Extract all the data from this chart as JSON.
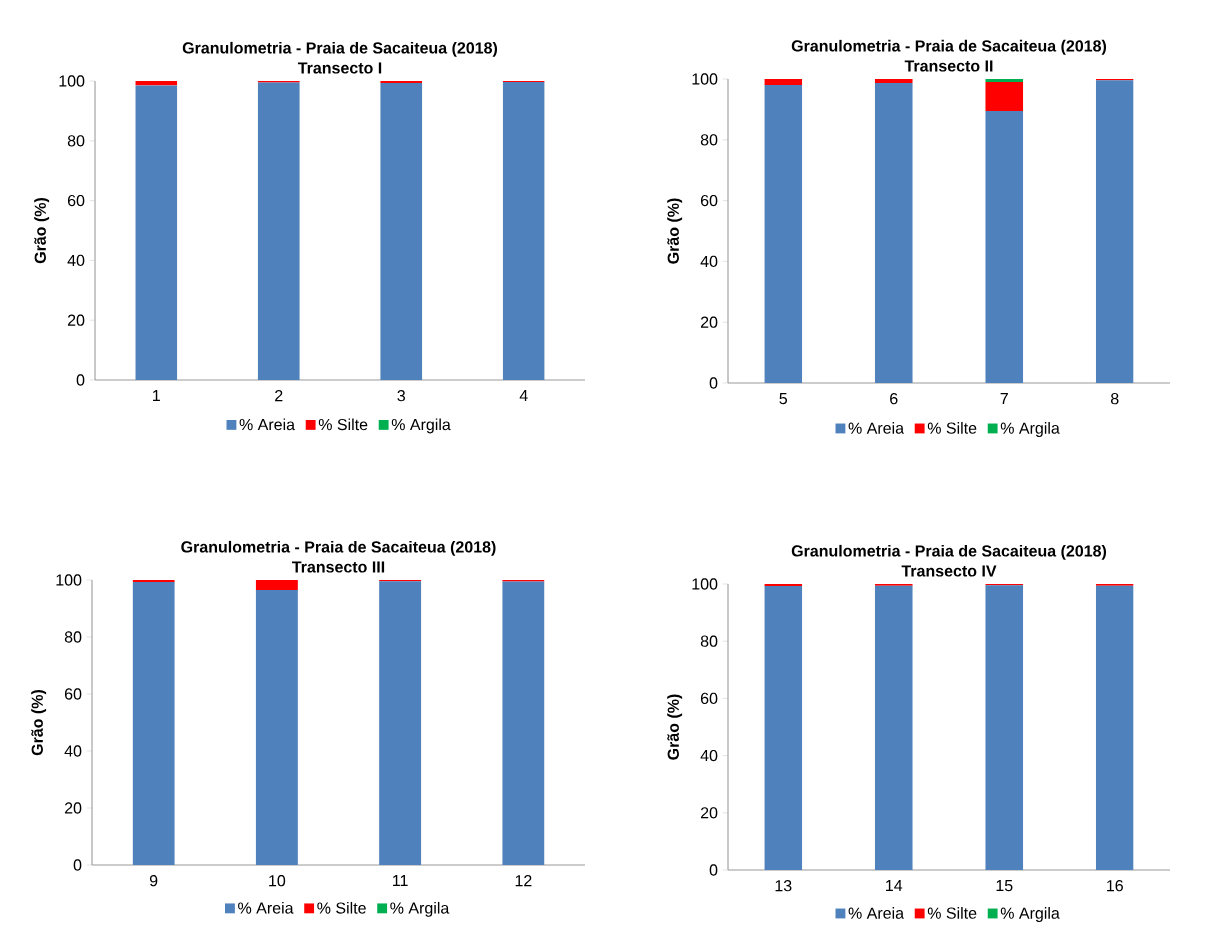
{
  "chart_data": [
    {
      "type": "bar",
      "stacked": true,
      "title": "Granulometria - Praia de Sacaiteua (2018)",
      "subtitle": "Transecto I",
      "ylabel": "Grão (%)",
      "categories": [
        "1",
        "2",
        "3",
        "4"
      ],
      "ylim": [
        0,
        100
      ],
      "yticks": [
        0,
        20,
        40,
        60,
        80,
        100
      ],
      "grid": false,
      "legend": "bottom",
      "series": [
        {
          "name": "% Areia",
          "color": "#4f81bd",
          "values": [
            98.5,
            99.5,
            99.3,
            99.7
          ]
        },
        {
          "name": "% Silte",
          "color": "#ff0000",
          "values": [
            1.5,
            0.5,
            0.7,
            0.3
          ]
        },
        {
          "name": "% Argila",
          "color": "#00b050",
          "values": [
            0,
            0,
            0,
            0
          ]
        }
      ]
    },
    {
      "type": "bar",
      "stacked": true,
      "title": "Granulometria - Praia de Sacaiteua (2018)",
      "subtitle": "Transecto II",
      "ylabel": "Grão (%)",
      "categories": [
        "5",
        "6",
        "7",
        "8"
      ],
      "ylim": [
        0,
        100
      ],
      "yticks": [
        0,
        20,
        40,
        60,
        80,
        100
      ],
      "grid": false,
      "legend": "bottom",
      "series": [
        {
          "name": "% Areia",
          "color": "#4f81bd",
          "values": [
            98,
            98.7,
            89.5,
            99.6
          ]
        },
        {
          "name": "% Silte",
          "color": "#ff0000",
          "values": [
            2,
            1.3,
            9.5,
            0.4
          ]
        },
        {
          "name": "% Argila",
          "color": "#00b050",
          "values": [
            0,
            0,
            1,
            0
          ]
        }
      ]
    },
    {
      "type": "bar",
      "stacked": true,
      "title": "Granulometria - Praia de Sacaiteua (2018)",
      "subtitle": "Transecto III",
      "ylabel": "Grão (%)",
      "categories": [
        "9",
        "10",
        "11",
        "12"
      ],
      "ylim": [
        0,
        100
      ],
      "yticks": [
        0,
        20,
        40,
        60,
        80,
        100
      ],
      "grid": false,
      "legend": "bottom",
      "series": [
        {
          "name": "% Areia",
          "color": "#4f81bd",
          "values": [
            99.3,
            96.5,
            99.6,
            99.5
          ]
        },
        {
          "name": "% Silte",
          "color": "#ff0000",
          "values": [
            0.7,
            3.5,
            0.4,
            0.5
          ]
        },
        {
          "name": "% Argila",
          "color": "#00b050",
          "values": [
            0,
            0,
            0,
            0
          ]
        }
      ]
    },
    {
      "type": "bar",
      "stacked": true,
      "title": "Granulometria - Praia de Sacaiteua (2018)",
      "subtitle": "Transecto IV",
      "ylabel": "Grão (%)",
      "categories": [
        "13",
        "14",
        "15",
        "16"
      ],
      "ylim": [
        0,
        100
      ],
      "yticks": [
        0,
        20,
        40,
        60,
        80,
        100
      ],
      "grid": false,
      "legend": "bottom",
      "series": [
        {
          "name": "% Areia",
          "color": "#4f81bd",
          "values": [
            99.3,
            99.4,
            99.6,
            99.4
          ]
        },
        {
          "name": "% Silte",
          "color": "#ff0000",
          "values": [
            0.7,
            0.6,
            0.4,
            0.6
          ]
        },
        {
          "name": "% Argila",
          "color": "#00b050",
          "values": [
            0,
            0,
            0,
            0
          ]
        }
      ]
    }
  ]
}
